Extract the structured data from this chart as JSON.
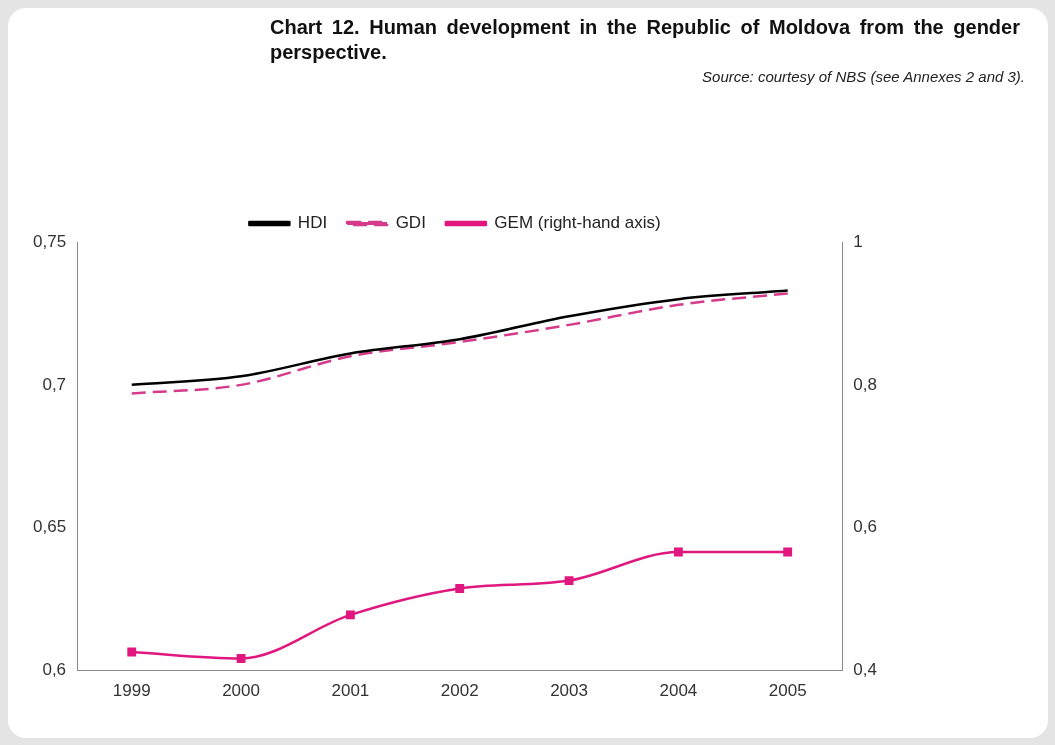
{
  "chart_data": {
    "type": "line",
    "title": "Chart 12. Human development in the Republic of Moldova from the gender perspective.",
    "annotations": [
      "Source: courtesy of NBS (see Annexes 2 and 3)."
    ],
    "categories": [
      "1999",
      "2000",
      "2001",
      "2002",
      "2003",
      "2004",
      "2005"
    ],
    "series": [
      {
        "name": "HDI",
        "color": "#000000",
        "values": [
          0.7,
          0.703,
          0.711,
          0.716,
          0.724,
          0.73,
          0.733
        ]
      },
      {
        "name": "GDI",
        "color": "#d63a8a",
        "line_style": "dashed",
        "values": [
          0.697,
          0.7,
          0.71,
          0.715,
          0.721,
          0.728,
          0.732
        ]
      },
      {
        "name": "GEM (right-hand axis)",
        "color": "#e0177f",
        "marker": "square",
        "axis": "y2",
        "values": [
          0.426,
          0.417,
          0.478,
          0.515,
          0.526,
          0.566,
          0.566
        ]
      }
    ],
    "ylim": [
      0.6,
      0.75
    ],
    "yticks": [
      {
        "value": 0.6,
        "label": "0,6"
      },
      {
        "value": 0.65,
        "label": "0,65"
      },
      {
        "value": 0.7,
        "label": "0,7"
      },
      {
        "value": 0.75,
        "label": "0,75"
      }
    ],
    "y2lim": [
      0.4,
      1
    ],
    "y2ticks": [
      {
        "value": 0.4,
        "label": "0,4"
      },
      {
        "value": 0.6,
        "label": "0,6"
      },
      {
        "value": 0.8,
        "label": "0,8"
      },
      {
        "value": 1,
        "label": "1"
      }
    ],
    "grid": false,
    "legend": "top",
    "marker": "none",
    "line_style": "solid"
  }
}
